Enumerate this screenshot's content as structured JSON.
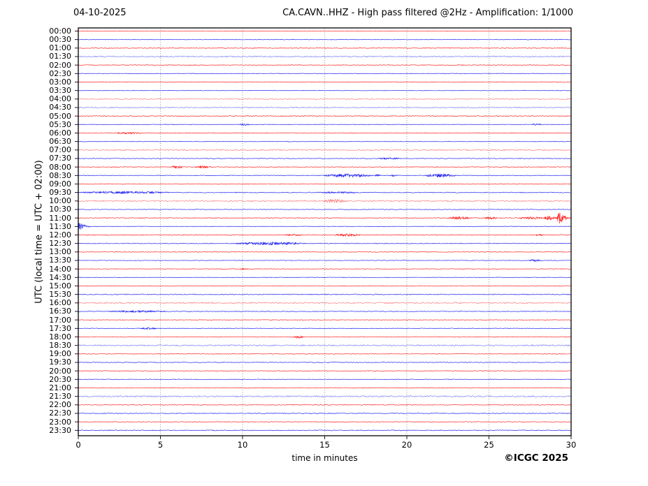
{
  "header": {
    "date": "04-10-2025",
    "title": "CA.CAVN..HHZ - High pass filtered @2Hz - Amplification: 1/1000"
  },
  "axes": {
    "y_label": "UTC (local time = UTC + 02:00)",
    "x_label": "time in minutes"
  },
  "footer": {
    "credit": "©ICGC 2025"
  },
  "colors": {
    "trace_red": "#ff0000",
    "trace_blue": "#0000ee",
    "grid": "#808080",
    "axis": "#000000",
    "background": "#ffffff"
  },
  "chart_data": {
    "type": "line",
    "subtype": "helicorder-dayplot",
    "title": "CA.CAVN..HHZ - High pass filtered @2Hz - Amplification: 1/1000",
    "date": "04-10-2025",
    "xlabel": "time in minutes",
    "ylabel": "UTC (local time = UTC + 02:00)",
    "xlim": [
      0,
      30
    ],
    "x_ticks": [
      0,
      5,
      10,
      15,
      20,
      25,
      30
    ],
    "grid_minutes": [
      5,
      10,
      15,
      20,
      25
    ],
    "grid_style": "dotted",
    "minutes_per_row": 30,
    "row_color_pattern": [
      "red",
      "blue"
    ],
    "rows": [
      {
        "label": "00:00",
        "color": "red",
        "noise": 0.3,
        "events": []
      },
      {
        "label": "00:30",
        "color": "blue",
        "noise": 0.32,
        "events": []
      },
      {
        "label": "01:00",
        "color": "red",
        "noise": 0.55,
        "events": []
      },
      {
        "label": "01:30",
        "color": "blue",
        "noise": 0.9,
        "events": []
      },
      {
        "label": "02:00",
        "color": "red",
        "noise": 0.55,
        "events": []
      },
      {
        "label": "02:30",
        "color": "blue",
        "noise": 0.35,
        "events": []
      },
      {
        "label": "03:00",
        "color": "red",
        "noise": 0.45,
        "events": []
      },
      {
        "label": "03:30",
        "color": "blue",
        "noise": 0.35,
        "events": []
      },
      {
        "label": "04:00",
        "color": "red",
        "noise": 0.8,
        "events": []
      },
      {
        "label": "04:30",
        "color": "blue",
        "noise": 0.75,
        "events": []
      },
      {
        "label": "05:00",
        "color": "red",
        "noise": 0.6,
        "events": []
      },
      {
        "label": "05:30",
        "color": "blue",
        "noise": 0.4,
        "events": [
          [
            9.8,
            10.4,
            1.1
          ],
          [
            27.6,
            28.2,
            1.0
          ]
        ]
      },
      {
        "label": "06:00",
        "color": "red",
        "noise": 0.5,
        "events": [
          [
            2.2,
            3.9,
            0.9
          ]
        ]
      },
      {
        "label": "06:30",
        "color": "blue",
        "noise": 0.4,
        "events": []
      },
      {
        "label": "07:00",
        "color": "red",
        "noise": 1.0,
        "events": []
      },
      {
        "label": "07:30",
        "color": "blue",
        "noise": 0.45,
        "events": [
          [
            18.2,
            19.6,
            0.9
          ]
        ]
      },
      {
        "label": "08:00",
        "color": "red",
        "noise": 0.5,
        "events": [
          [
            5.6,
            6.4,
            1.4
          ],
          [
            7.1,
            8.1,
            1.3
          ]
        ]
      },
      {
        "label": "08:30",
        "color": "blue",
        "noise": 0.5,
        "events": [
          [
            14.9,
            17.9,
            2.1
          ],
          [
            18.0,
            18.4,
            1.0
          ],
          [
            19.0,
            19.4,
            0.9
          ],
          [
            21.1,
            23.0,
            2.1
          ]
        ]
      },
      {
        "label": "09:00",
        "color": "red",
        "noise": 0.5,
        "events": []
      },
      {
        "label": "09:30",
        "color": "blue",
        "noise": 0.55,
        "events": [
          [
            0,
            5.6,
            1.2
          ],
          [
            14.5,
            17.0,
            0.7
          ]
        ]
      },
      {
        "label": "10:00",
        "color": "red",
        "noise": 1.0,
        "events": [
          [
            14.9,
            16.3,
            1.6
          ]
        ]
      },
      {
        "label": "10:30",
        "color": "blue",
        "noise": 0.4,
        "events": []
      },
      {
        "label": "11:00",
        "color": "red",
        "noise": 0.55,
        "events": [
          [
            22.5,
            23.9,
            1.5
          ],
          [
            24.7,
            25.5,
            1.1
          ],
          [
            26.8,
            28.3,
            1.2
          ],
          [
            28.3,
            29.2,
            2.6
          ],
          [
            29.15,
            30.1,
            10.0,
            1
          ]
        ]
      },
      {
        "label": "11:30",
        "color": "blue",
        "noise": 0.4,
        "events": [
          [
            -0.3,
            0.9,
            9.0,
            1
          ]
        ]
      },
      {
        "label": "12:00",
        "color": "red",
        "noise": 0.6,
        "events": [
          [
            12.6,
            13.6,
            0.8
          ],
          [
            15.6,
            17.2,
            1.3
          ],
          [
            27.8,
            28.3,
            1.0
          ]
        ]
      },
      {
        "label": "12:30",
        "color": "blue",
        "noise": 0.55,
        "events": [
          [
            9.5,
            13.8,
            1.7
          ]
        ]
      },
      {
        "label": "13:00",
        "color": "red",
        "noise": 0.45,
        "events": []
      },
      {
        "label": "13:30",
        "color": "blue",
        "noise": 0.4,
        "events": [
          [
            27.4,
            28.2,
            1.2
          ]
        ]
      },
      {
        "label": "14:00",
        "color": "red",
        "noise": 0.4,
        "events": [
          [
            9.8,
            10.3,
            0.9
          ]
        ]
      },
      {
        "label": "14:30",
        "color": "blue",
        "noise": 0.4,
        "events": []
      },
      {
        "label": "15:00",
        "color": "red",
        "noise": 0.45,
        "events": []
      },
      {
        "label": "15:30",
        "color": "blue",
        "noise": 0.6,
        "events": []
      },
      {
        "label": "16:00",
        "color": "red",
        "noise": 1.0,
        "events": []
      },
      {
        "label": "16:30",
        "color": "blue",
        "noise": 0.5,
        "events": [
          [
            1.8,
            5.4,
            1.0
          ]
        ]
      },
      {
        "label": "17:00",
        "color": "red",
        "noise": 0.4,
        "events": []
      },
      {
        "label": "17:30",
        "color": "blue",
        "noise": 0.4,
        "events": [
          [
            3.8,
            4.8,
            1.2
          ]
        ]
      },
      {
        "label": "18:00",
        "color": "red",
        "noise": 0.45,
        "events": [
          [
            13.1,
            13.7,
            1.5
          ]
        ]
      },
      {
        "label": "18:30",
        "color": "blue",
        "noise": 0.95,
        "events": []
      },
      {
        "label": "19:00",
        "color": "red",
        "noise": 0.45,
        "events": []
      },
      {
        "label": "19:30",
        "color": "blue",
        "noise": 0.5,
        "events": []
      },
      {
        "label": "20:00",
        "color": "red",
        "noise": 0.45,
        "events": []
      },
      {
        "label": "20:30",
        "color": "blue",
        "noise": 0.45,
        "events": []
      },
      {
        "label": "21:00",
        "color": "red",
        "noise": 0.45,
        "events": []
      },
      {
        "label": "21:30",
        "color": "blue",
        "noise": 1.0,
        "events": []
      },
      {
        "label": "22:00",
        "color": "red",
        "noise": 0.5,
        "events": []
      },
      {
        "label": "22:30",
        "color": "blue",
        "noise": 0.55,
        "events": []
      },
      {
        "label": "23:00",
        "color": "red",
        "noise": 0.45,
        "events": []
      },
      {
        "label": "23:30",
        "color": "blue",
        "noise": 0.55,
        "events": []
      }
    ]
  }
}
